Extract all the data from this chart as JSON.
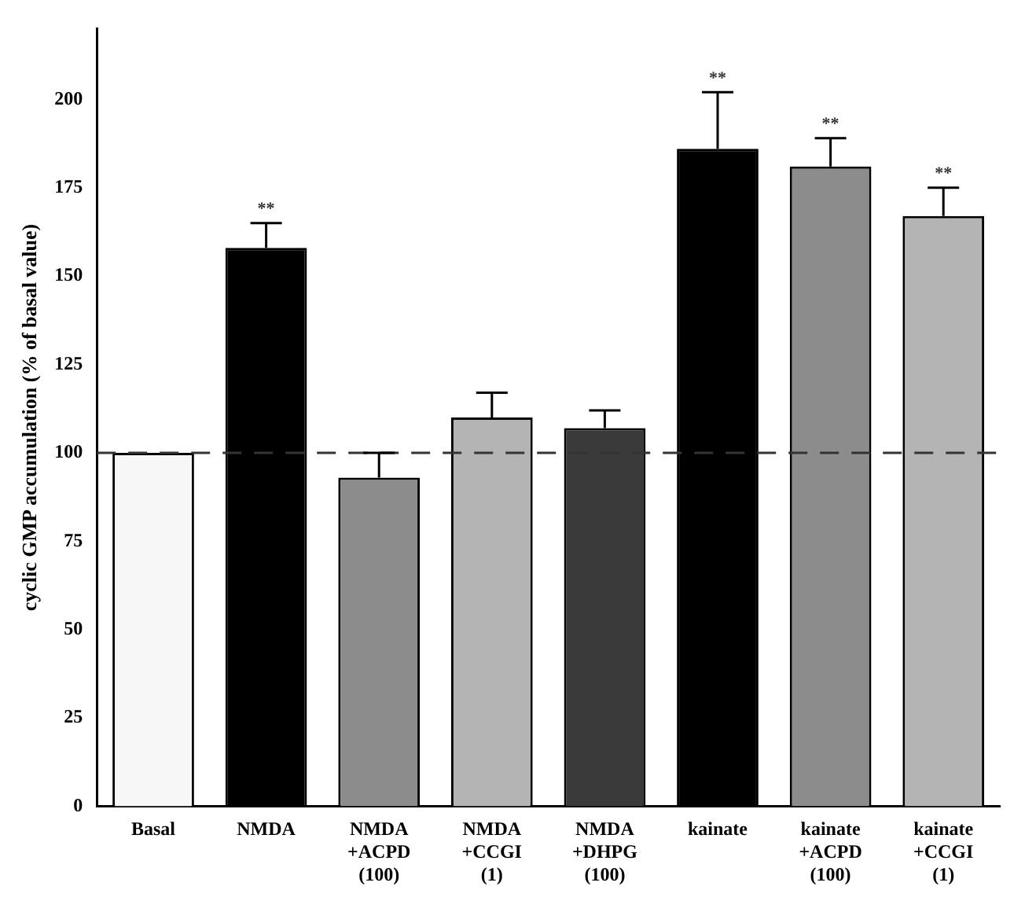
{
  "chart_data": {
    "type": "bar",
    "ylabel": "cyclic GMP accumulation (% of basal value)",
    "categories": [
      "Basal",
      "NMDA",
      "NMDA\n+ACPD\n(100)",
      "NMDA\n+CCGI\n(1)",
      "NMDA\n+DHPG\n(100)",
      "kainate",
      "kainate\n+ACPD\n(100)",
      "kainate\n+CCGI\n(1)"
    ],
    "values": [
      100,
      158,
      93,
      110,
      107,
      186,
      181,
      167
    ],
    "errors": [
      null,
      7,
      7,
      7,
      5,
      16,
      8,
      8
    ],
    "colors": [
      "#f7f7f7",
      "#000000",
      "#8c8c8c",
      "#b4b4b4",
      "#3a3a3a",
      "#000000",
      "#8c8c8c",
      "#b4b4b4"
    ],
    "ylim": [
      0,
      220
    ],
    "yticks": [
      0,
      25,
      50,
      75,
      100,
      125,
      150,
      175,
      200
    ],
    "ref_lines": [
      {
        "axis": "y",
        "value": 100,
        "line_style": "dashed",
        "color": "#333333"
      }
    ],
    "annotations": [
      {
        "text": "**",
        "x": "NMDA",
        "y": 165
      },
      {
        "text": "**",
        "x": "kainate",
        "y": 202
      },
      {
        "text": "**",
        "x": "kainate\n+ACPD\n(100)",
        "y": 189
      },
      {
        "text": "**",
        "x": "kainate\n+CCGI\n(1)",
        "y": 175
      }
    ],
    "grid": false,
    "legend": false
  }
}
